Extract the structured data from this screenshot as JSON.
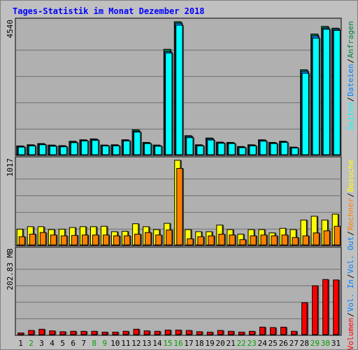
{
  "title": "Tages-Statistik im Monat Dezember 2018",
  "colors": {
    "background": "#c0c0c0",
    "plot_bg": "#b0b0b0",
    "title": "#0000ff",
    "hits": "#008040",
    "files": "#0080ff",
    "pages": "#00ffff",
    "visits": "#ffff00",
    "sites": "#ff8000",
    "kbytes": "#ff0000",
    "weekend_label": "#00a000",
    "weekday_label": "#000000"
  },
  "chart_data": [
    {
      "type": "bar",
      "name": "top",
      "y_tick_label": "4540",
      "ylim": [
        0,
        4540
      ],
      "series": [
        {
          "name": "Anfragen",
          "values": [
            300,
            340,
            380,
            330,
            310,
            460,
            510,
            540,
            330,
            340,
            510,
            850,
            420,
            330,
            3600,
            4540,
            650,
            340,
            570,
            430,
            420,
            280,
            340,
            510,
            420,
            460,
            260,
            2900,
            4120,
            4380,
            4320
          ]
        },
        {
          "name": "Dateien",
          "values": [
            280,
            320,
            360,
            310,
            290,
            430,
            490,
            520,
            320,
            320,
            490,
            800,
            400,
            310,
            3520,
            4490,
            620,
            320,
            540,
            410,
            400,
            260,
            320,
            490,
            400,
            440,
            250,
            2850,
            4060,
            4320,
            4280
          ]
        },
        {
          "name": "Seiten",
          "values": [
            260,
            300,
            340,
            290,
            270,
            410,
            470,
            490,
            300,
            300,
            470,
            770,
            380,
            290,
            3470,
            4420,
            580,
            300,
            500,
            390,
            380,
            240,
            300,
            460,
            380,
            420,
            230,
            2780,
            3980,
            4280,
            4240
          ]
        }
      ],
      "legend": [
        "Anfragen",
        "/",
        "Dateien",
        "/",
        "Seiten"
      ]
    },
    {
      "type": "bar",
      "name": "middle",
      "y_tick_label": "1017",
      "ylim": [
        0,
        1017
      ],
      "series": [
        {
          "name": "Besuche",
          "values": [
            190,
            220,
            220,
            185,
            190,
            210,
            220,
            220,
            225,
            160,
            165,
            255,
            220,
            185,
            260,
            1017,
            185,
            160,
            160,
            240,
            185,
            130,
            185,
            185,
            145,
            200,
            185,
            300,
            345,
            300,
            370
          ]
        },
        {
          "name": "Rechner",
          "values": [
            100,
            130,
            150,
            120,
            110,
            115,
            120,
            120,
            120,
            110,
            110,
            130,
            150,
            120,
            180,
            920,
            75,
            100,
            110,
            130,
            120,
            65,
            110,
            120,
            110,
            120,
            90,
            110,
            145,
            170,
            225
          ]
        }
      ],
      "legend": [
        "Besuche",
        "/",
        "Rechner",
        "/",
        "Vol. Out",
        "/",
        "Vol. In",
        "/",
        "Volumen"
      ]
    },
    {
      "type": "bar",
      "name": "bottom",
      "y_tick_label": "202.83 MB",
      "ylim": [
        0,
        202.83
      ],
      "series": [
        {
          "name": "Volumen",
          "values": [
            4,
            10,
            13,
            9,
            7,
            8,
            8,
            8,
            6,
            6,
            8,
            13,
            9,
            8,
            11,
            11,
            10,
            7,
            6,
            10,
            8,
            6,
            8,
            18,
            17,
            18,
            8,
            77,
            118,
            133,
            132
          ]
        }
      ]
    }
  ],
  "x_labels": [
    {
      "label": "1",
      "weekend": false
    },
    {
      "label": "2",
      "weekend": true
    },
    {
      "label": "3",
      "weekend": false
    },
    {
      "label": "4",
      "weekend": false
    },
    {
      "label": "5",
      "weekend": false
    },
    {
      "label": "6",
      "weekend": false
    },
    {
      "label": "7",
      "weekend": false
    },
    {
      "label": "8",
      "weekend": true
    },
    {
      "label": "9",
      "weekend": true
    },
    {
      "label": "10",
      "weekend": false
    },
    {
      "label": "11",
      "weekend": false
    },
    {
      "label": "12",
      "weekend": false
    },
    {
      "label": "13",
      "weekend": false
    },
    {
      "label": "14",
      "weekend": false
    },
    {
      "label": "15",
      "weekend": true
    },
    {
      "label": "16",
      "weekend": true
    },
    {
      "label": "17",
      "weekend": false
    },
    {
      "label": "18",
      "weekend": false
    },
    {
      "label": "19",
      "weekend": false
    },
    {
      "label": "20",
      "weekend": false
    },
    {
      "label": "21",
      "weekend": false
    },
    {
      "label": "22",
      "weekend": true
    },
    {
      "label": "23",
      "weekend": true
    },
    {
      "label": "24",
      "weekend": false
    },
    {
      "label": "25",
      "weekend": false
    },
    {
      "label": "26",
      "weekend": false
    },
    {
      "label": "27",
      "weekend": false
    },
    {
      "label": "28",
      "weekend": false
    },
    {
      "label": "29",
      "weekend": true
    },
    {
      "label": "30",
      "weekend": true
    },
    {
      "label": "31",
      "weekend": false
    }
  ]
}
